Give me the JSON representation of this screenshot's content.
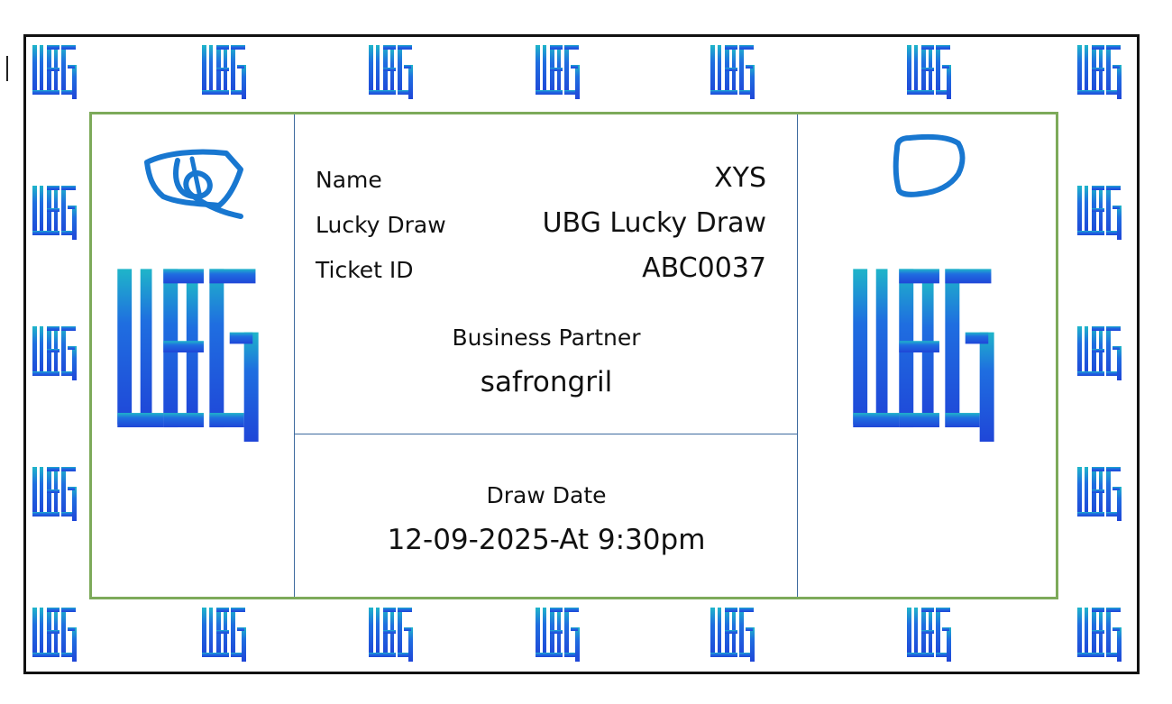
{
  "ticket": {
    "name_label": "Name",
    "name_value": "XYS",
    "draw_label": "Lucky Draw",
    "draw_value": "UBG Lucky Draw",
    "ticket_label": "Ticket ID",
    "ticket_value": "ABC0037",
    "partner_label": "Business Partner",
    "partner_value": "safrongril",
    "date_label": "Draw Date",
    "date_value": "12-09-2025-At 9:30pm"
  },
  "branding": {
    "logo_icon": "ubg-logo-icon",
    "logo_colors": {
      "top": "#1fb5c9",
      "bottom": "#1f55d8"
    },
    "border_accent": "#7daa5a",
    "divider_color": "#3d6a9e",
    "signature_color": "#1877d0"
  }
}
